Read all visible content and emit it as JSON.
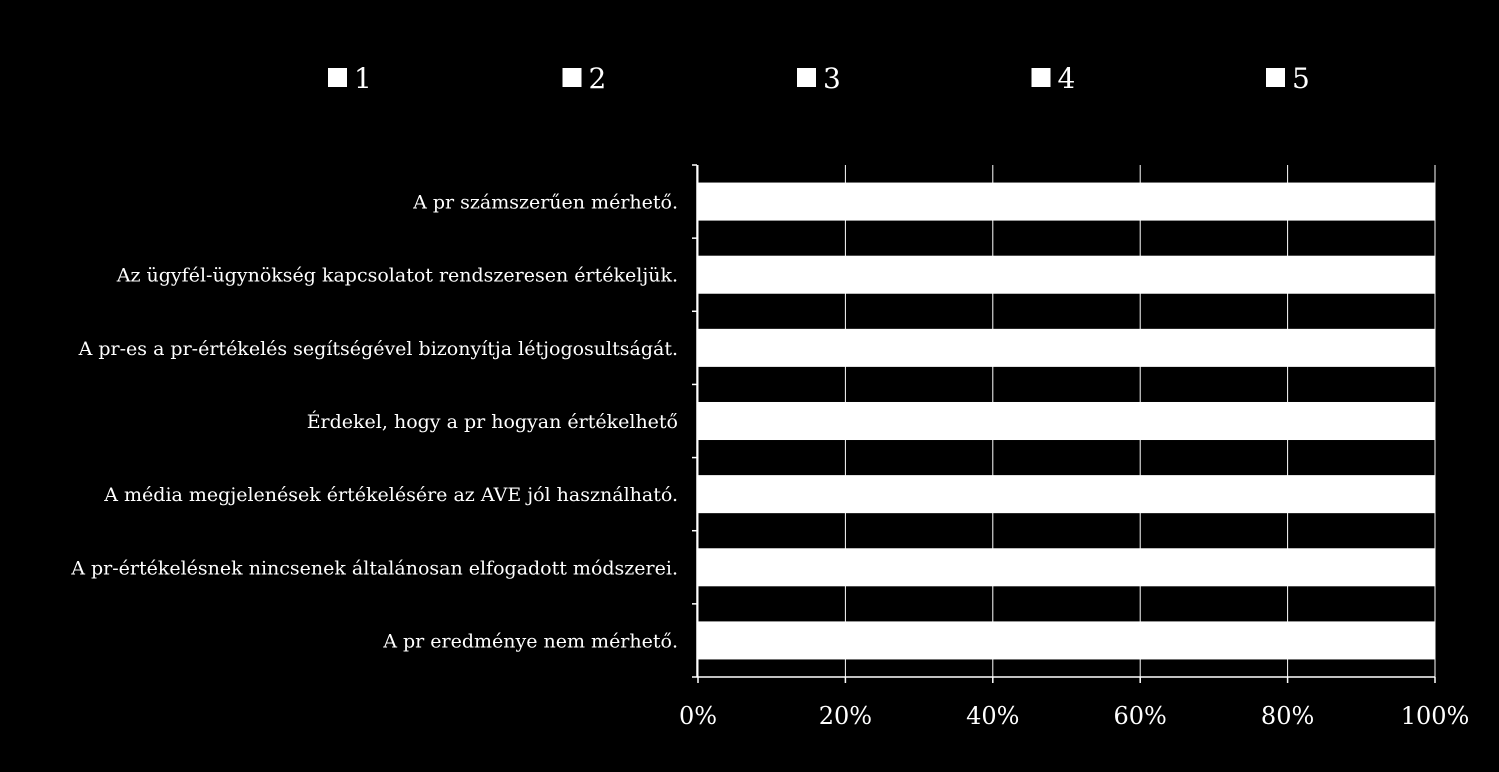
{
  "chart_data": {
    "type": "bar",
    "orientation": "horizontal",
    "stacked": "percent",
    "legend_position": "top",
    "grid": true,
    "categories": [
      "A pr számszerűen mérhető.",
      "Az ügyfél-ügynökség kapcsolatot rendszeresen értékeljük.",
      "A pr-es a pr-értékelés segítségével bizonyítja létjogosultságát.",
      "Érdekel, hogy a pr hogyan értékelhető",
      "A média megjelenések értékelésére az AVE jól használható.",
      "A pr-értékelésnek nincsenek általánosan elfogadott módszerei.",
      "A pr eredménye nem mérhető."
    ],
    "series": [
      {
        "name": "1",
        "values": [
          20,
          20,
          20,
          20,
          20,
          20,
          20
        ]
      },
      {
        "name": "2",
        "values": [
          20,
          20,
          20,
          20,
          20,
          20,
          20
        ]
      },
      {
        "name": "3",
        "values": [
          20,
          20,
          20,
          20,
          20,
          20,
          20
        ]
      },
      {
        "name": "4",
        "values": [
          20,
          20,
          20,
          20,
          20,
          20,
          20
        ]
      },
      {
        "name": "5",
        "values": [
          20,
          20,
          20,
          20,
          20,
          20,
          20
        ]
      }
    ],
    "xlim": [
      0,
      100
    ],
    "x_ticks": [
      "0%",
      "20%",
      "40%",
      "60%",
      "80%",
      "100%"
    ],
    "colors": {
      "background": "#000000",
      "bar": "#ffffff",
      "text": "#ffffff",
      "grid": "#ffffff"
    }
  }
}
